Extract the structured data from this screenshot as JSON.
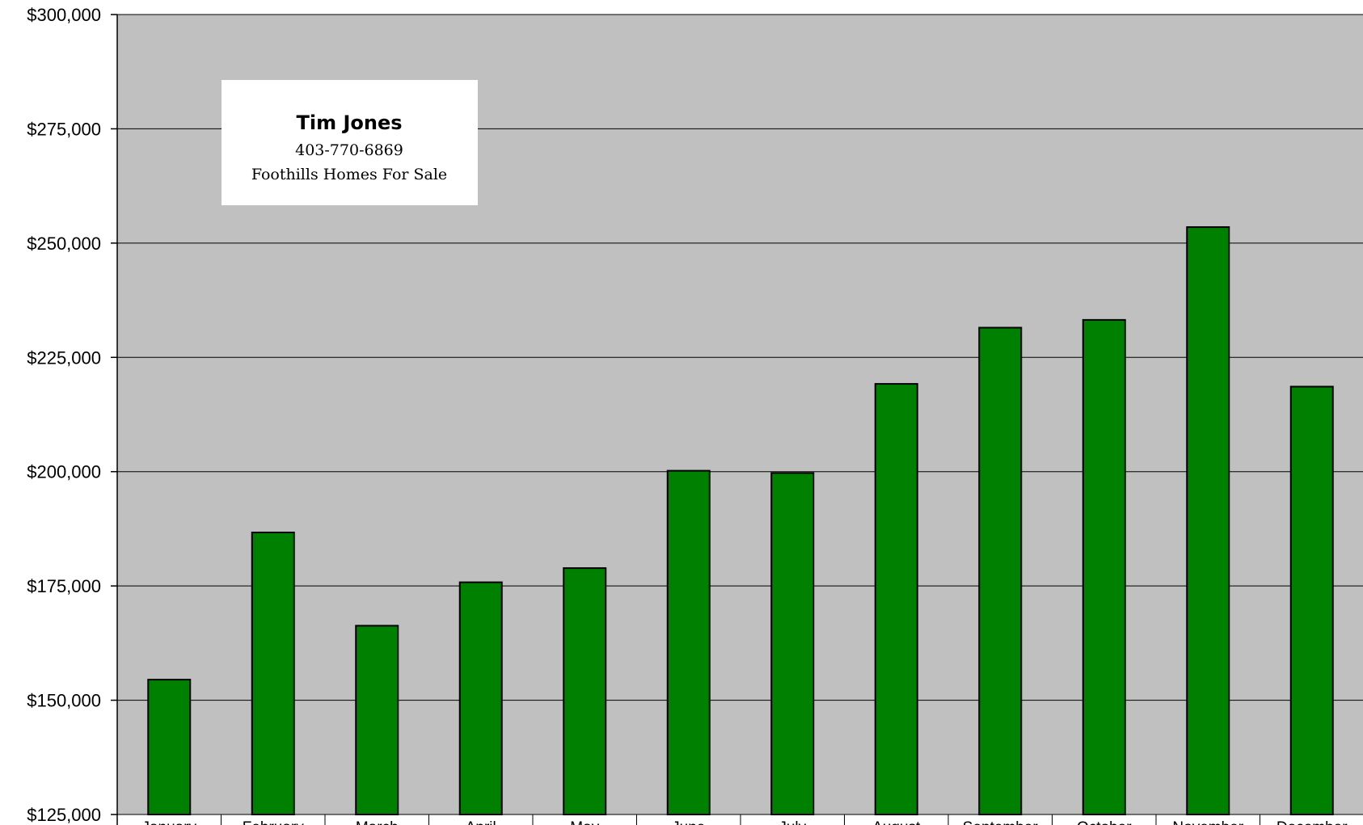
{
  "chart_data": {
    "type": "bar",
    "title": "",
    "xlabel": "",
    "ylabel": "",
    "categories": [
      "January",
      "February",
      "March",
      "April",
      "May",
      "June",
      "July",
      "August",
      "September",
      "October",
      "November",
      "December"
    ],
    "series": [
      {
        "values": [
          154500,
          186700,
          166300,
          175800,
          178900,
          200200,
          199700,
          219200,
          231500,
          233200,
          253500,
          218600
        ]
      }
    ],
    "ylim": [
      125000,
      300000
    ],
    "yticks": [
      125000,
      150000,
      175000,
      200000,
      225000,
      250000,
      275000,
      300000
    ],
    "ytick_labels": [
      "$125,000",
      "$150,000",
      "$175,000",
      "$200,000",
      "$225,000",
      "$250,000",
      "$275,000",
      "$300,000"
    ],
    "grid": true,
    "legend": "none",
    "colors": {
      "bar_fill": "#008000",
      "bar_stroke": "#000000",
      "plot_background": "#c0c0c0",
      "gridline": "#000000"
    },
    "annotation": {
      "name": "Tim Jones",
      "phone": "403-770-6869",
      "tagline": "Foothills Homes For Sale"
    }
  }
}
